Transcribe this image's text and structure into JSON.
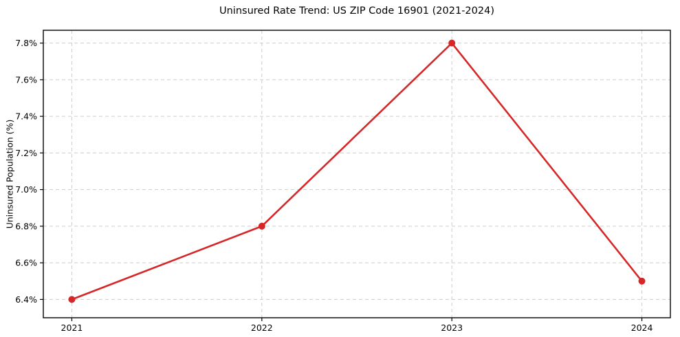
{
  "figure": {
    "title": "Uninsured Rate Trend: US ZIP Code 16901 (2021-2024)",
    "ylabel": "Uninsured Population (%)",
    "xlabel": ""
  },
  "chart_data": {
    "type": "line",
    "title": "Uninsured Rate Trend: US ZIP Code 16901 (2021-2024)",
    "xlabel": "",
    "ylabel": "Uninsured Population (%)",
    "x": [
      2021,
      2022,
      2023,
      2024
    ],
    "values": [
      6.4,
      6.8,
      7.8,
      6.5
    ],
    "value_unit": "%",
    "xtick_values": [
      2021,
      2022,
      2023,
      2024
    ],
    "xtick_labels": [
      "2021",
      "2022",
      "2023",
      "2024"
    ],
    "ytick_values": [
      6.4,
      6.6,
      6.8,
      7.0,
      7.2,
      7.4,
      7.6,
      7.8
    ],
    "ytick_labels": [
      "6.4%",
      "6.6%",
      "6.8%",
      "7.0%",
      "7.2%",
      "7.4%",
      "7.6%",
      "7.8%"
    ],
    "xlim": [
      2020.85,
      2024.15
    ],
    "ylim": [
      6.3,
      7.87
    ],
    "grid": true,
    "grid_style": "dashed",
    "legend_position": "none",
    "line_color": "#d62728",
    "marker_color": "#d62728",
    "marker": "circle",
    "grid_color": "#cccccc",
    "spine_color": "#000000",
    "background_color": "#ffffff"
  }
}
